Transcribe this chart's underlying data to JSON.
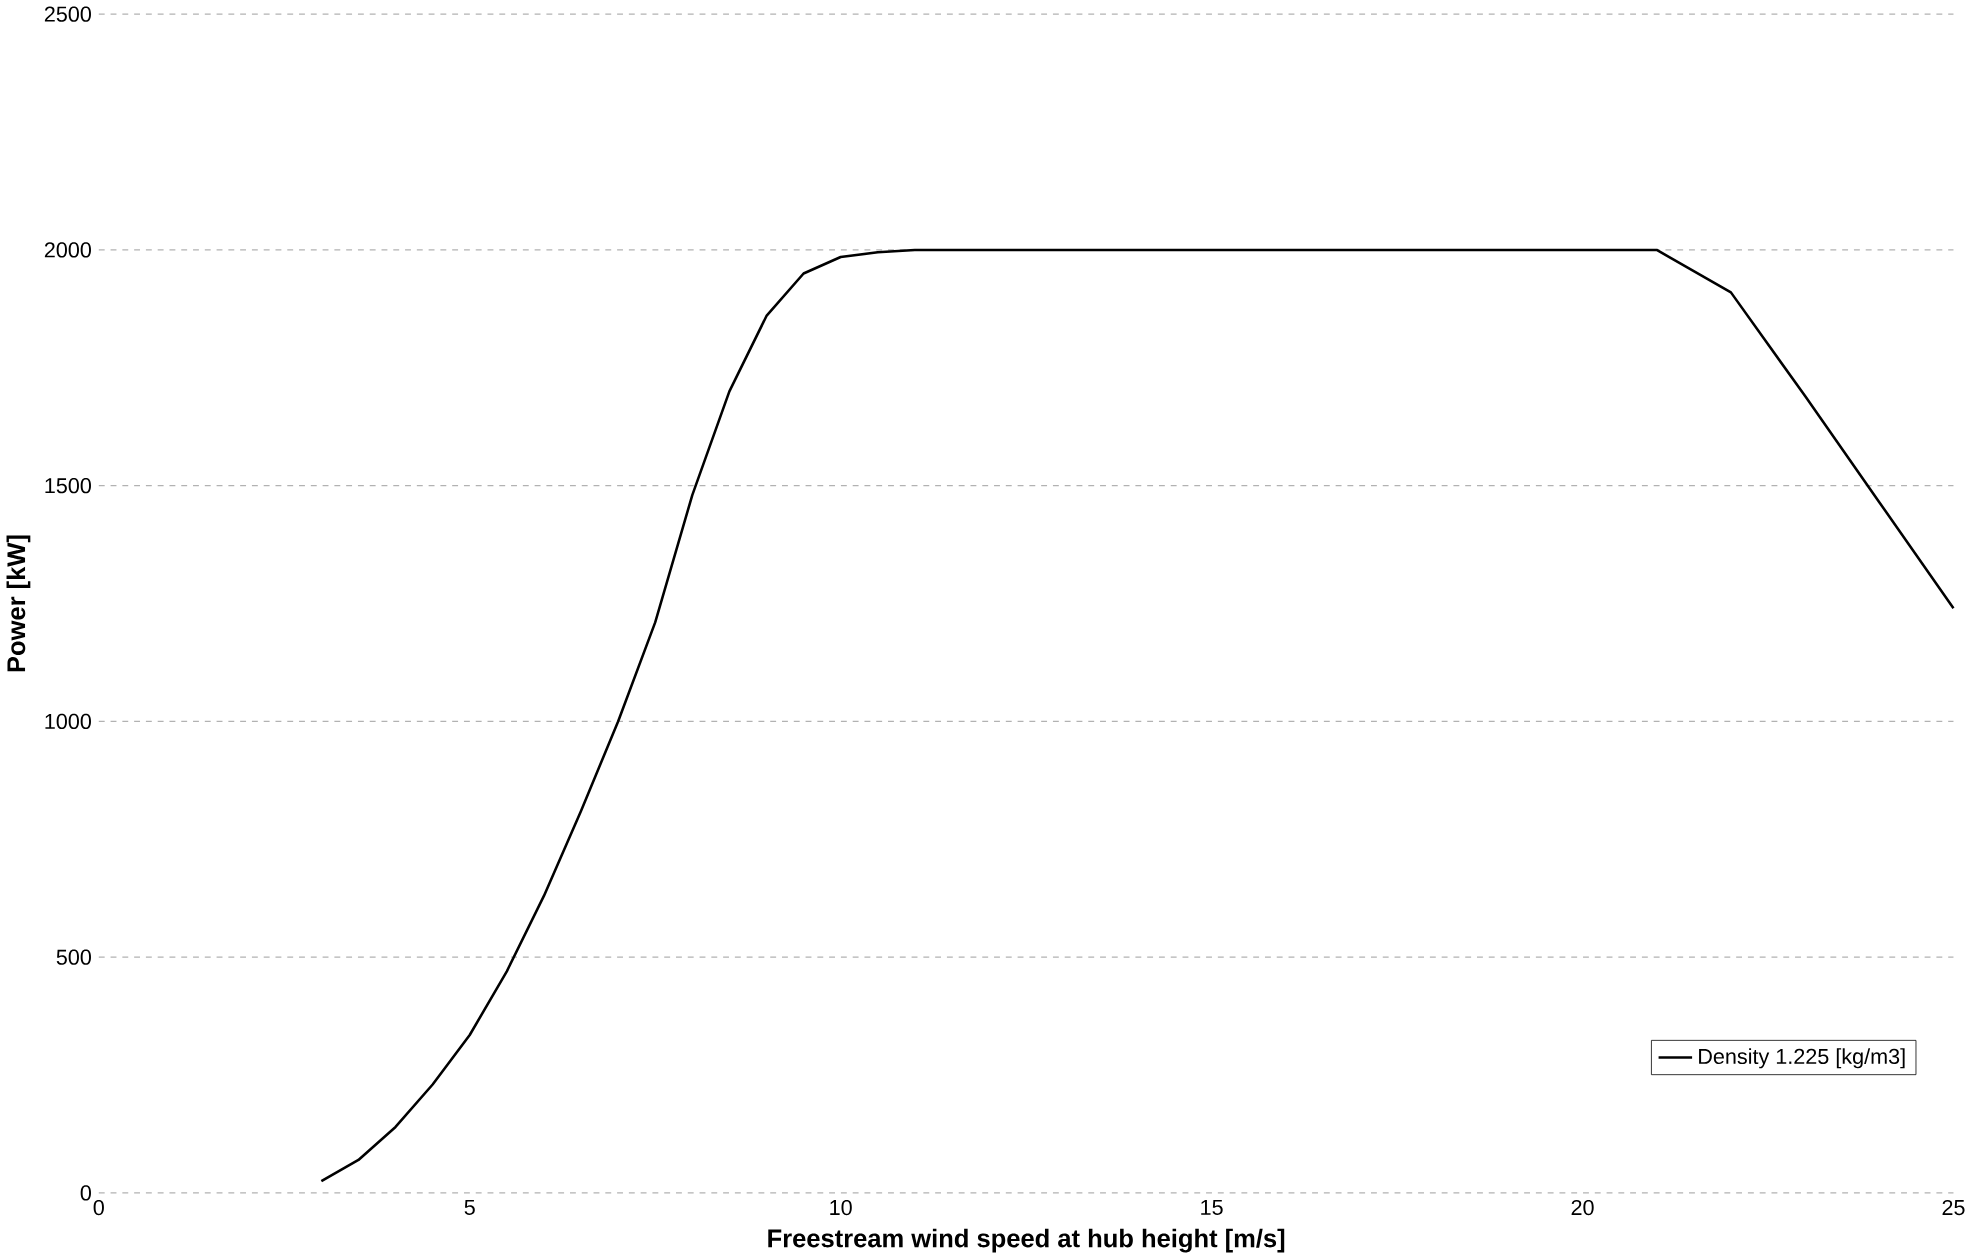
{
  "chart_data": {
    "type": "line",
    "xlabel": "Freestream wind speed at hub height [m/s]",
    "ylabel": "Power [kW]",
    "xlim": [
      0,
      25
    ],
    "xticks": [
      0,
      5,
      10,
      15,
      20,
      25
    ],
    "ylim": [
      0,
      2500
    ],
    "yticks": [
      0,
      500,
      1000,
      1500,
      2000,
      2500
    ],
    "grid": "y",
    "legend": "bottom right",
    "series": [
      {
        "name": "Density   1.225 [kg/m3]",
        "color": "#000000",
        "x": [
          3,
          3.5,
          4,
          4.5,
          5,
          5.5,
          6,
          6.5,
          7,
          7.5,
          8,
          8.5,
          9,
          9.5,
          10,
          10.5,
          11,
          12,
          13,
          14,
          15,
          16,
          17,
          18,
          19,
          20,
          21,
          22,
          23,
          24,
          25
        ],
        "values": [
          25,
          70,
          140,
          230,
          335,
          470,
          630,
          810,
          1000,
          1210,
          1480,
          1700,
          1860,
          1950,
          1985,
          1995,
          2000,
          2000,
          2000,
          2000,
          2000,
          2000,
          2000,
          2000,
          2000,
          2000,
          2000,
          1910,
          1690,
          1465,
          1240
        ]
      }
    ]
  }
}
